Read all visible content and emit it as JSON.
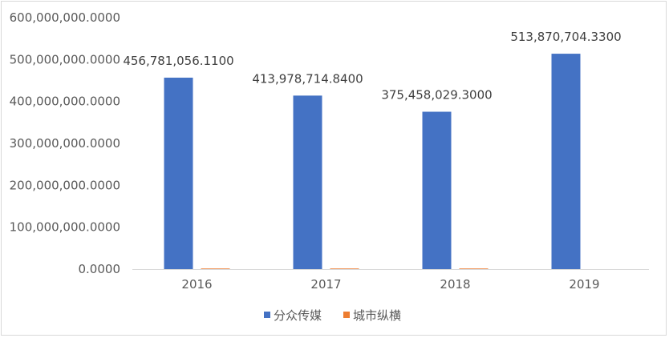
{
  "chart_data": {
    "type": "bar",
    "categories": [
      "2016",
      "2017",
      "2018",
      "2019"
    ],
    "series": [
      {
        "name": "分众传媒",
        "values": [
          456781056.11,
          413978714.84,
          375458029.3,
          513870704.33
        ],
        "labels": [
          "456,781,056.1100",
          "413,978,714.8400",
          "375,458,029.3000",
          "513,870,704.3300"
        ],
        "color": "#4472c4"
      },
      {
        "name": "城市纵横",
        "values": [
          1500000,
          1500000,
          1500000,
          0
        ],
        "color": "#ed7d31"
      }
    ],
    "y_ticks": [
      "0.0000",
      "100,000,000.0000",
      "200,000,000.0000",
      "300,000,000.0000",
      "400,000,000.0000",
      "500,000,000.0000",
      "600,000,000.0000"
    ],
    "ylim": [
      0,
      600000000
    ],
    "grid": false,
    "legend_position": "bottom"
  }
}
